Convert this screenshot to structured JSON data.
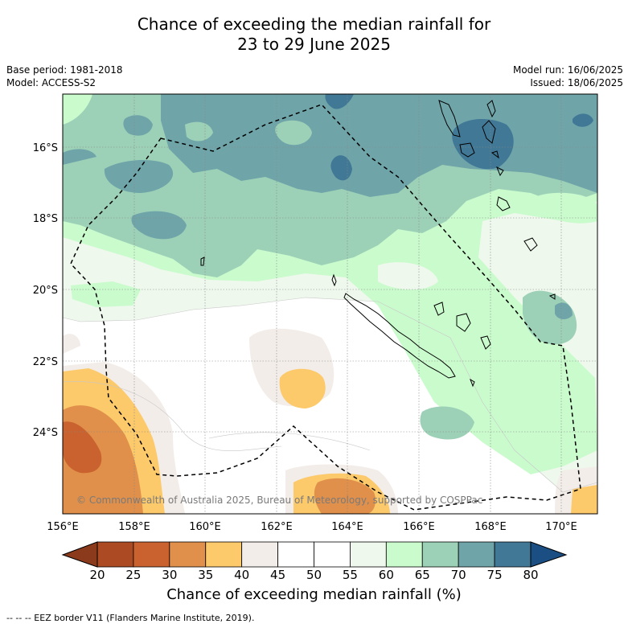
{
  "title_line1": "Chance of exceeding the median rainfall for",
  "title_line2": "23 to 29 June 2025",
  "base_period": "Base period: 1981-2018",
  "model": "Model: ACCESS-S2",
  "model_run": "Model run: 16/06/2025",
  "issued": "Issued: 18/06/2025",
  "copyright": "© Commonwealth of Australia 2025, Bureau of Meteorology, supported by COSPPac",
  "lat_labels": [
    "16°S",
    "18°S",
    "20°S",
    "22°S",
    "24°S"
  ],
  "lon_labels": [
    "156°E",
    "158°E",
    "160°E",
    "162°E",
    "164°E",
    "166°E",
    "168°E",
    "170°E"
  ],
  "colorbar": {
    "title": "Chance of exceeding median rainfall (%)",
    "ticks": [
      "20",
      "25",
      "30",
      "35",
      "40",
      "45",
      "50",
      "55",
      "60",
      "65",
      "70",
      "75",
      "80"
    ],
    "colors": [
      "#ab4a23",
      "#c9622f",
      "#e0904a",
      "#fcc96b",
      "#f3ede9",
      "#ffffff",
      "#ffffff",
      "#eef8ec",
      "#cafbcd",
      "#9dd1b7",
      "#6fa5a9",
      "#417896"
    ],
    "under_color": "#8c3a1c",
    "over_color": "#1b4f84"
  },
  "legend_note": "--  --  -- EEZ border V11 (Flanders Marine Institute, 2019)."
}
